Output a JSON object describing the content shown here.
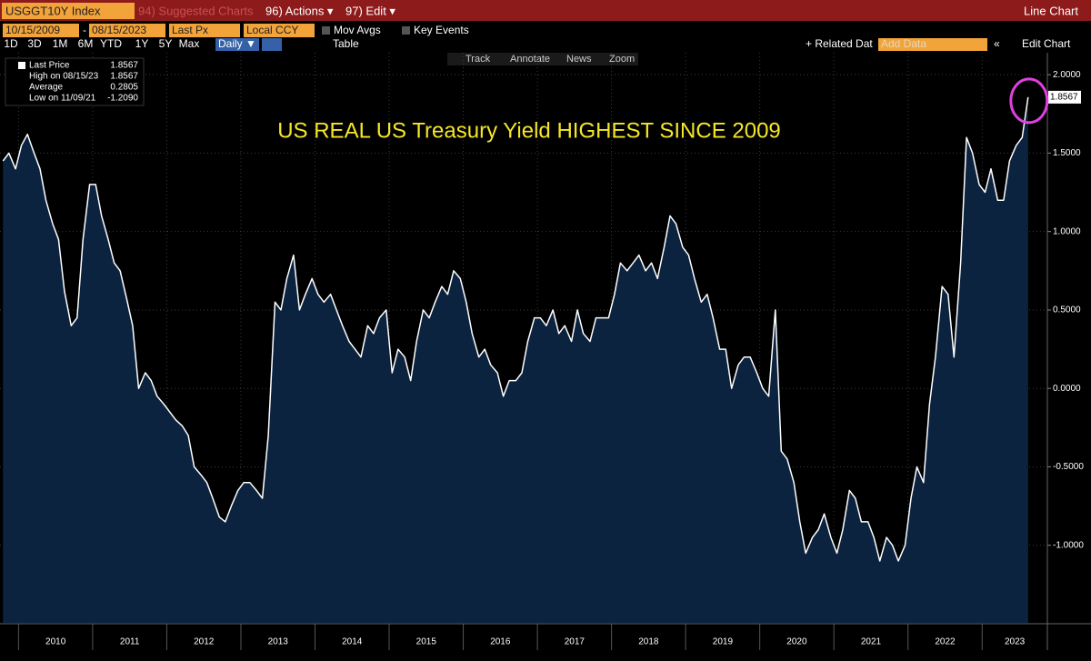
{
  "toolbar": {
    "ticker": "USGGT10Y Index",
    "suggested": "94) Suggested Charts",
    "actions": "96) Actions ▾",
    "edit": "97) Edit ▾",
    "view": "Line Chart",
    "start_date": "10/15/2009",
    "date_sep": "-",
    "end_date": "08/15/2023",
    "field": "Last Px",
    "currency": "Local CCY",
    "mov_avgs": "Mov Avgs",
    "key_events": "Key Events",
    "periods": [
      "1D",
      "3D",
      "1M",
      "6M",
      "YTD",
      "1Y",
      "5Y",
      "Max"
    ],
    "frequency": "Daily ▼",
    "table": "Table",
    "related": "+ Related Dat",
    "add_data": "Add Data",
    "edit_chart": "Edit Chart",
    "tools": [
      "Track",
      "Annotate",
      "News",
      "Zoom"
    ]
  },
  "chart_data": {
    "type": "line",
    "annotation": "US REAL US Treasury Yield HIGHEST SINCE 2009",
    "legend_stats": [
      {
        "label": "Last Price",
        "value": "1.8567"
      },
      {
        "label": "High on 08/15/23",
        "value": "1.8567"
      },
      {
        "label": "Average",
        "value": "0.2805"
      },
      {
        "label": "Low on 11/09/21",
        "value": "-1.2090"
      }
    ],
    "color": "#ffffff",
    "area_color": "#0c2340",
    "grid": true,
    "xlim": [
      2009.75,
      2023.88
    ],
    "xticks": [
      2010,
      2011,
      2012,
      2013,
      2014,
      2015,
      2016,
      2017,
      2018,
      2019,
      2020,
      2021,
      2022,
      2023
    ],
    "ylim": [
      -1.5,
      2.14
    ],
    "yticks": [
      {
        "value": -1,
        "label": "-1.0000"
      },
      {
        "value": -0.5,
        "label": "-0.5000"
      },
      {
        "value": 0,
        "label": "0.0000"
      },
      {
        "value": 0.5,
        "label": "0.5000"
      },
      {
        "value": 1,
        "label": "1.0000"
      },
      {
        "value": 1.5,
        "label": "1.5000"
      },
      {
        "value": 2,
        "label": "2.0000"
      }
    ],
    "x": [
      2009.79,
      2009.87,
      2009.96,
      2010.04,
      2010.12,
      2010.21,
      2010.29,
      2010.37,
      2010.46,
      2010.54,
      2010.62,
      2010.71,
      2010.79,
      2010.87,
      2010.96,
      2011.04,
      2011.12,
      2011.21,
      2011.29,
      2011.37,
      2011.46,
      2011.54,
      2011.62,
      2011.71,
      2011.79,
      2011.87,
      2011.96,
      2012.04,
      2012.12,
      2012.21,
      2012.29,
      2012.37,
      2012.46,
      2012.54,
      2012.62,
      2012.71,
      2012.79,
      2012.87,
      2012.96,
      2013.04,
      2013.12,
      2013.21,
      2013.29,
      2013.37,
      2013.46,
      2013.54,
      2013.62,
      2013.71,
      2013.79,
      2013.87,
      2013.96,
      2014.04,
      2014.12,
      2014.21,
      2014.29,
      2014.37,
      2014.46,
      2014.54,
      2014.62,
      2014.71,
      2014.79,
      2014.87,
      2014.96,
      2015.04,
      2015.12,
      2015.21,
      2015.29,
      2015.37,
      2015.46,
      2015.54,
      2015.62,
      2015.71,
      2015.79,
      2015.87,
      2015.96,
      2016.04,
      2016.12,
      2016.21,
      2016.29,
      2016.37,
      2016.46,
      2016.54,
      2016.62,
      2016.71,
      2016.79,
      2016.87,
      2016.96,
      2017.04,
      2017.12,
      2017.21,
      2017.29,
      2017.37,
      2017.46,
      2017.54,
      2017.62,
      2017.71,
      2017.79,
      2017.87,
      2017.96,
      2018.04,
      2018.12,
      2018.21,
      2018.29,
      2018.37,
      2018.46,
      2018.54,
      2018.62,
      2018.71,
      2018.79,
      2018.87,
      2018.96,
      2019.04,
      2019.12,
      2019.21,
      2019.29,
      2019.37,
      2019.46,
      2019.54,
      2019.62,
      2019.71,
      2019.79,
      2019.87,
      2019.96,
      2020.04,
      2020.12,
      2020.21,
      2020.29,
      2020.37,
      2020.46,
      2020.54,
      2020.62,
      2020.71,
      2020.79,
      2020.87,
      2020.96,
      2021.04,
      2021.12,
      2021.21,
      2021.29,
      2021.37,
      2021.46,
      2021.54,
      2021.62,
      2021.71,
      2021.79,
      2021.87,
      2021.96,
      2022.04,
      2022.12,
      2022.21,
      2022.29,
      2022.37,
      2022.46,
      2022.54,
      2022.62,
      2022.71,
      2022.79,
      2022.87,
      2022.96,
      2023.04,
      2023.12,
      2023.21,
      2023.29,
      2023.37,
      2023.46,
      2023.54,
      2023.62
    ],
    "values": [
      1.45,
      1.5,
      1.4,
      1.55,
      1.62,
      1.5,
      1.4,
      1.2,
      1.05,
      0.95,
      0.62,
      0.4,
      0.45,
      0.95,
      1.3,
      1.3,
      1.1,
      0.95,
      0.8,
      0.75,
      0.57,
      0.4,
      0.0,
      0.1,
      0.05,
      -0.05,
      -0.1,
      -0.15,
      -0.2,
      -0.24,
      -0.3,
      -0.5,
      -0.55,
      -0.6,
      -0.7,
      -0.82,
      -0.85,
      -0.75,
      -0.65,
      -0.6,
      -0.6,
      -0.65,
      -0.7,
      -0.3,
      0.55,
      0.5,
      0.7,
      0.85,
      0.5,
      0.6,
      0.7,
      0.6,
      0.55,
      0.6,
      0.5,
      0.4,
      0.3,
      0.25,
      0.2,
      0.4,
      0.35,
      0.45,
      0.5,
      0.1,
      0.25,
      0.2,
      0.05,
      0.3,
      0.5,
      0.45,
      0.55,
      0.65,
      0.6,
      0.75,
      0.7,
      0.55,
      0.35,
      0.2,
      0.25,
      0.15,
      0.1,
      -0.05,
      0.05,
      0.05,
      0.1,
      0.3,
      0.45,
      0.45,
      0.4,
      0.5,
      0.35,
      0.4,
      0.3,
      0.5,
      0.35,
      0.3,
      0.45,
      0.45,
      0.45,
      0.6,
      0.8,
      0.75,
      0.8,
      0.85,
      0.75,
      0.8,
      0.7,
      0.9,
      1.1,
      1.05,
      0.9,
      0.85,
      0.7,
      0.55,
      0.6,
      0.45,
      0.25,
      0.25,
      0.0,
      0.15,
      0.2,
      0.2,
      0.1,
      0.0,
      -0.05,
      0.5,
      -0.4,
      -0.45,
      -0.6,
      -0.85,
      -1.05,
      -0.95,
      -0.9,
      -0.8,
      -0.95,
      -1.05,
      -0.9,
      -0.65,
      -0.7,
      -0.85,
      -0.85,
      -0.95,
      -1.1,
      -0.95,
      -1.0,
      -1.1,
      -1.0,
      -0.7,
      -0.5,
      -0.6,
      -0.1,
      0.2,
      0.65,
      0.6,
      0.2,
      0.8,
      1.6,
      1.5,
      1.3,
      1.25,
      1.4,
      1.2,
      1.2,
      1.45,
      1.55,
      1.6,
      1.8567
    ]
  }
}
